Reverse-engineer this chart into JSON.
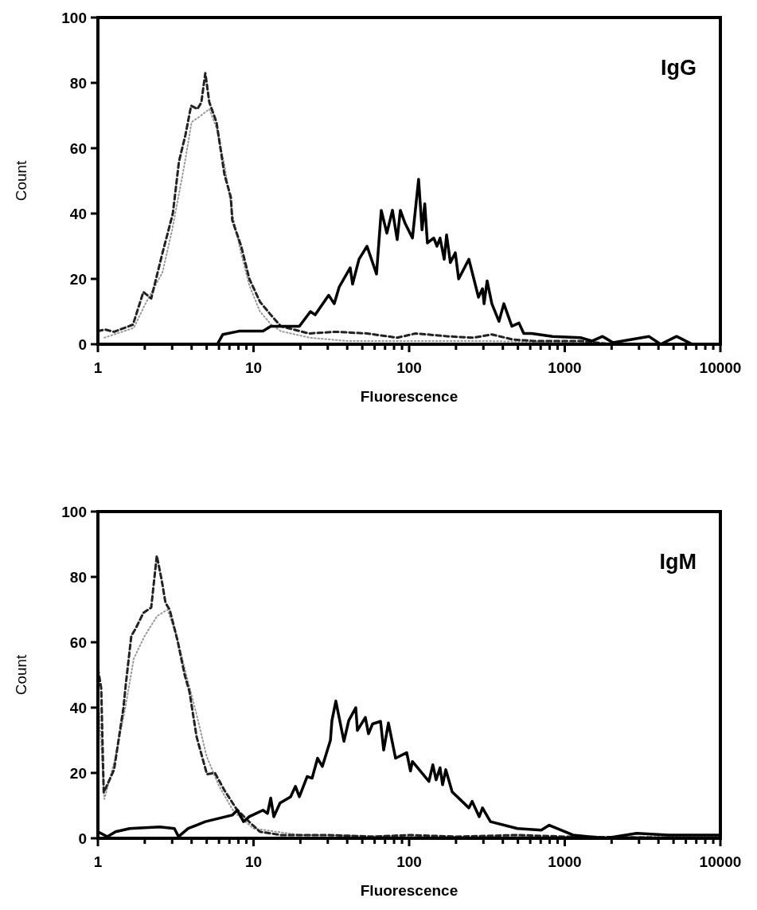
{
  "chart_data": [
    {
      "type": "line",
      "title": "IgG",
      "xlabel": "Fluorescence",
      "ylabel": "Count",
      "log": "x",
      "xlim": [
        1,
        10000
      ],
      "ylim": [
        0,
        100
      ],
      "yticks": [
        0,
        20,
        40,
        60,
        80,
        100
      ],
      "xticks": [
        1,
        {
          "value": 2,
          "label": null
        },
        {
          "value": 3,
          "label": null
        },
        {
          "value": 4,
          "label": null
        },
        {
          "value": 5,
          "label": null
        },
        {
          "value": 6,
          "label": null
        },
        {
          "value": 7,
          "label": null
        },
        {
          "value": 8,
          "label": null
        },
        {
          "value": 9,
          "label": null
        },
        10,
        {
          "value": 20,
          "label": null
        },
        {
          "value": 30,
          "label": null
        },
        {
          "value": 40,
          "label": null
        },
        {
          "value": 50,
          "label": null
        },
        {
          "value": 60,
          "label": null
        },
        {
          "value": 70,
          "label": null
        },
        {
          "value": 80,
          "label": null
        },
        {
          "value": 90,
          "label": null
        },
        100,
        {
          "value": 200,
          "label": null
        },
        {
          "value": 300,
          "label": null
        },
        {
          "value": 400,
          "label": null
        },
        {
          "value": 500,
          "label": null
        },
        {
          "value": 600,
          "label": null
        },
        {
          "value": 700,
          "label": null
        },
        {
          "value": 800,
          "label": null
        },
        {
          "value": 900,
          "label": null
        },
        1000,
        {
          "value": 2000,
          "label": null
        },
        {
          "value": 3000,
          "label": null
        },
        {
          "value": 4000,
          "label": null
        },
        {
          "value": 5000,
          "label": null
        },
        {
          "value": 6000,
          "label": null
        },
        {
          "value": 7000,
          "label": null
        },
        {
          "value": 8000,
          "label": null
        },
        {
          "value": 9000,
          "label": null
        },
        10000
      ],
      "series": [
        {
          "color": "#999999",
          "line_style": "dotted",
          "x": [
            1.1,
            1.7,
            2,
            2.6,
            3,
            3.6,
            4,
            4.6,
            5.2,
            5.8,
            6.5,
            7.3,
            8.3,
            9.4,
            11,
            13,
            15,
            23,
            40,
            100,
            300,
            1000,
            10000
          ],
          "values": [
            2,
            5,
            12,
            22,
            35,
            55,
            68,
            70,
            72,
            66,
            55,
            40,
            28,
            18,
            10,
            6,
            4,
            2,
            1,
            1,
            1,
            0.5,
            0
          ]
        },
        {
          "color": "#222222",
          "line_style": "dashed",
          "x": [
            1,
            1.11,
            1.27,
            1.68,
            1.96,
            2.2,
            2.57,
            3.03,
            3.32,
            3.65,
            3.97,
            4.36,
            4.62,
            4.9,
            5.2,
            5.78,
            6.13,
            6.5,
            7.15,
            7.3,
            8.33,
            9.4,
            11,
            12.9,
            15,
            22.7,
            33.8,
            53.6,
            84,
            110,
            180,
            260,
            340,
            468,
            635,
            1260,
            2000,
            5000,
            10000
          ],
          "values": [
            4,
            4.5,
            3.8,
            6,
            16,
            14,
            27,
            40,
            56,
            64,
            73,
            72,
            74,
            83,
            74,
            68,
            60,
            52,
            45,
            38,
            30,
            20,
            13,
            9,
            5.5,
            3.3,
            3.8,
            3.3,
            2,
            3.3,
            2.4,
            2,
            3,
            1.4,
            1,
            1,
            0,
            0,
            0
          ]
        },
        {
          "color": "#000000",
          "line_style": "solid",
          "x": [
            1,
            5.85,
            6.35,
            8.05,
            11.5,
            12.9,
            16.3,
            19.7,
            23.2,
            24.9,
            30.4,
            33,
            35.5,
            41.8,
            43.3,
            47.6,
            53.6,
            61.7,
            66.2,
            71.9,
            78.1,
            83.8,
            87.8,
            94.2,
            105,
            115,
            121,
            126,
            131,
            144,
            151,
            158,
            168,
            174,
            184,
            198,
            208,
            242,
            279,
            296,
            303,
            317,
            340,
            378,
            406,
            457,
            508,
            545,
            613,
            833,
            1260,
            1500,
            1750,
            2040,
            3470,
            4130,
            5230,
            6600,
            10000
          ],
          "values": [
            0,
            0,
            3,
            4,
            4,
            5.5,
            5.5,
            5.5,
            10,
            9,
            15,
            12.4,
            17.5,
            23.4,
            18.4,
            26,
            30,
            21.5,
            41,
            34,
            41,
            32,
            41,
            37,
            32.5,
            50.5,
            35,
            43,
            31,
            32.5,
            30,
            32.5,
            26,
            33.5,
            25,
            28,
            20,
            26,
            14.4,
            17,
            12.4,
            19.4,
            12.4,
            7,
            12.4,
            5.5,
            6.5,
            3.3,
            3.3,
            2.4,
            2,
            1,
            2.4,
            0.5,
            2.4,
            0,
            2.4,
            0,
            0
          ]
        }
      ]
    },
    {
      "type": "line",
      "title": "IgM",
      "xlabel": "Fluorescence",
      "ylabel": "Count",
      "log": "x",
      "xlim": [
        1,
        10000
      ],
      "ylim": [
        0,
        100
      ],
      "yticks": [
        0,
        20,
        40,
        60,
        80,
        100
      ],
      "xticks": [
        1,
        {
          "value": 2,
          "label": null
        },
        {
          "value": 3,
          "label": null
        },
        {
          "value": 4,
          "label": null
        },
        {
          "value": 5,
          "label": null
        },
        {
          "value": 6,
          "label": null
        },
        {
          "value": 7,
          "label": null
        },
        {
          "value": 8,
          "label": null
        },
        {
          "value": 9,
          "label": null
        },
        10,
        {
          "value": 20,
          "label": null
        },
        {
          "value": 30,
          "label": null
        },
        {
          "value": 40,
          "label": null
        },
        {
          "value": 50,
          "label": null
        },
        {
          "value": 60,
          "label": null
        },
        {
          "value": 70,
          "label": null
        },
        {
          "value": 80,
          "label": null
        },
        {
          "value": 90,
          "label": null
        },
        100,
        {
          "value": 200,
          "label": null
        },
        {
          "value": 300,
          "label": null
        },
        {
          "value": 400,
          "label": null
        },
        {
          "value": 500,
          "label": null
        },
        {
          "value": 600,
          "label": null
        },
        {
          "value": 700,
          "label": null
        },
        {
          "value": 800,
          "label": null
        },
        {
          "value": 900,
          "label": null
        },
        1000,
        {
          "value": 2000,
          "label": null
        },
        {
          "value": 3000,
          "label": null
        },
        {
          "value": 4000,
          "label": null
        },
        {
          "value": 5000,
          "label": null
        },
        {
          "value": 6000,
          "label": null
        },
        {
          "value": 7000,
          "label": null
        },
        {
          "value": 8000,
          "label": null
        },
        {
          "value": 9000,
          "label": null
        },
        10000
      ],
      "series": [
        {
          "color": "#999999",
          "line_style": "dotted",
          "x": [
            1,
            1.1,
            1.3,
            1.5,
            1.7,
            2,
            2.4,
            2.8,
            3.2,
            3.7,
            4.3,
            5,
            6,
            7.5,
            10,
            20,
            100,
            10000
          ],
          "values": [
            45,
            12,
            25,
            40,
            55,
            62,
            68,
            70,
            62,
            50,
            38,
            25,
            16,
            8,
            3,
            1,
            0.5,
            0.5
          ]
        },
        {
          "color": "#222222",
          "line_style": "dashed",
          "x": [
            1,
            1.05,
            1.09,
            1.27,
            1.46,
            1.51,
            1.64,
            1.74,
            1.96,
            2.2,
            2.39,
            2.57,
            2.72,
            2.89,
            3.25,
            3.61,
            3.87,
            4.31,
            5.02,
            5.65,
            6.5,
            7.76,
            9.4,
            11,
            15,
            30,
            60,
            100,
            200,
            500,
            1000,
            10000
          ],
          "values": [
            52,
            46,
            14,
            21,
            40,
            47,
            62,
            64,
            69,
            70.6,
            86.5,
            79,
            72,
            70,
            60.5,
            50,
            45,
            31,
            19.6,
            20,
            14.7,
            9,
            5,
            2,
            1,
            1,
            0.5,
            1,
            0.5,
            1,
            0.5,
            0
          ]
        },
        {
          "color": "#000000",
          "line_style": "solid",
          "x": [
            1,
            1.15,
            1.3,
            1.6,
            2.5,
            3.1,
            3.3,
            3.8,
            4.3,
            4.9,
            7.3,
            7.86,
            8.63,
            9.38,
            11.5,
            12.3,
            12.9,
            13.5,
            14.8,
            17.3,
            18.6,
            19.7,
            22.1,
            23.8,
            25.8,
            27.7,
            31.2,
            31.9,
            33.8,
            38.1,
            40.9,
            45.4,
            46.5,
            52.3,
            54.8,
            58.2,
            65.5,
            68.6,
            73.6,
            81.8,
            96.5,
            102,
            105,
            134,
            142,
            149,
            158,
            164,
            172,
            189,
            242,
            254,
            282,
            296,
            333,
            496,
            706,
            795,
            1130,
            1810,
            2900,
            4650,
            10000
          ],
          "values": [
            2,
            0.5,
            2,
            3,
            3.5,
            3,
            0.5,
            3,
            4,
            5.1,
            7.1,
            8.6,
            5.1,
            6.6,
            8.6,
            7.6,
            12.3,
            6.6,
            10.8,
            12.7,
            15.9,
            12.7,
            18.9,
            18.4,
            24.5,
            22,
            30,
            36,
            42,
            29.7,
            36,
            40,
            33,
            37,
            32,
            35,
            35.8,
            27,
            35.3,
            24.5,
            26.2,
            20.6,
            23.5,
            17.4,
            22.5,
            17.9,
            21.6,
            16.4,
            21,
            14.2,
            9.3,
            11.3,
            6.6,
            9.3,
            5.1,
            3,
            2.5,
            4,
            1,
            0,
            1.5,
            1,
            1
          ]
        }
      ]
    }
  ]
}
